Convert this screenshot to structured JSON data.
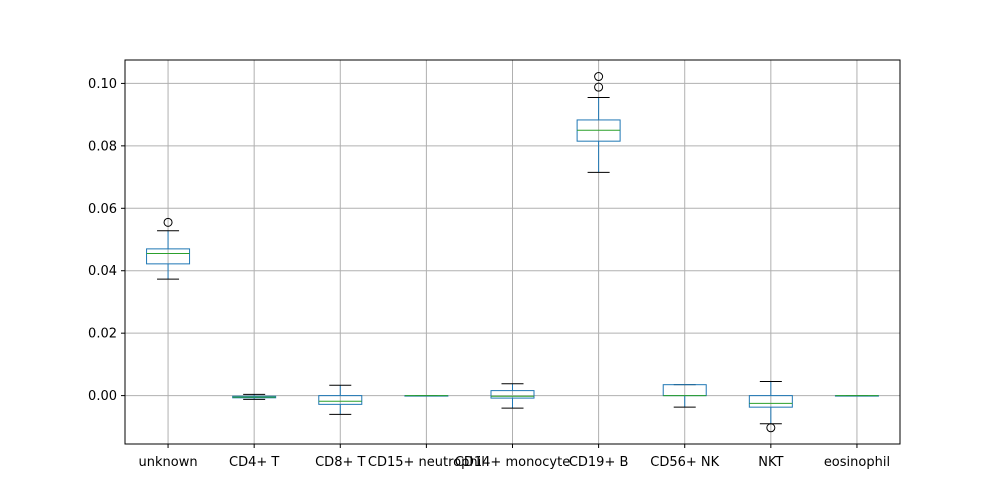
{
  "chart_data": {
    "type": "box",
    "categories": [
      "unknown",
      "CD4+ T",
      "CD8+ T",
      "CD15+ neutrophil",
      "CD14+ monocyte",
      "CD19+ B",
      "CD56+ NK",
      "NKT",
      "eosinophil"
    ],
    "boxes": [
      {
        "whisker_low": 0.0373,
        "q1": 0.0422,
        "median": 0.0455,
        "q3": 0.047,
        "whisker_high": 0.0528,
        "outliers": [
          0.0555
        ]
      },
      {
        "whisker_low": -0.0012,
        "q1": -0.0007,
        "median": -0.0005,
        "q3": -0.0002,
        "whisker_high": 0.0004,
        "outliers": []
      },
      {
        "whisker_low": -0.006,
        "q1": -0.0028,
        "median": -0.0018,
        "q3": 0.0,
        "whisker_high": 0.0033,
        "outliers": []
      },
      {
        "whisker_low": 0.0,
        "q1": 0.0,
        "median": 0.0,
        "q3": 0.0,
        "whisker_high": 0.0,
        "outliers": []
      },
      {
        "whisker_low": -0.004,
        "q1": -0.0008,
        "median": -0.0002,
        "q3": 0.0016,
        "whisker_high": 0.0038,
        "outliers": []
      },
      {
        "whisker_low": 0.0715,
        "q1": 0.0815,
        "median": 0.085,
        "q3": 0.0883,
        "whisker_high": 0.0955,
        "outliers": [
          0.0988,
          0.1022
        ]
      },
      {
        "whisker_low": -0.0037,
        "q1": 0.0,
        "median": 0.0,
        "q3": 0.0035,
        "whisker_high": 0.0035,
        "outliers": []
      },
      {
        "whisker_low": -0.009,
        "q1": -0.0037,
        "median": -0.0025,
        "q3": 0.0,
        "whisker_high": 0.0045,
        "outliers": [
          -0.0103
        ]
      },
      {
        "whisker_low": 0.0,
        "q1": 0.0,
        "median": 0.0,
        "q3": 0.0,
        "whisker_high": 0.0,
        "outliers": []
      }
    ],
    "yticks": [
      0.0,
      0.02,
      0.04,
      0.06,
      0.08,
      0.1
    ],
    "ytick_labels": [
      "0.00",
      "0.02",
      "0.04",
      "0.06",
      "0.08",
      "0.10"
    ],
    "ylim": [
      -0.0155,
      0.1075
    ],
    "grid": true,
    "colors": {
      "box": "#1f77b4",
      "median": "#2ca02c",
      "whisker": "#000000",
      "grid": "#b0b0b0"
    }
  }
}
